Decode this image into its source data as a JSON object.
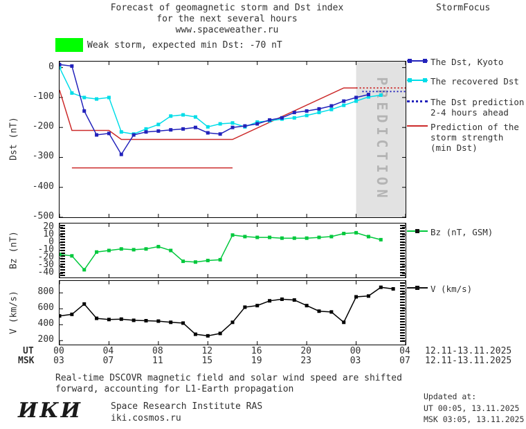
{
  "header": {
    "title_line1": "Forecast of geomagnetic storm and Dst index",
    "title_line2": "for the next several hours",
    "title_line3": "www.spaceweather.ru",
    "brand": "StormFocus"
  },
  "banner": {
    "text": "Weak storm, expected min Dst: -70 nT",
    "swatch_color": "#00ff00"
  },
  "colors": {
    "dst_blue": "#2222bb",
    "recovered_cyan": "#00dde8",
    "prediction_red": "#cc2a2a",
    "bz_green": "#00c83c",
    "v_black": "#000000",
    "band_bg": "#e2e2e2",
    "band_text": "#b4b4b4",
    "banner_green": "#00ff00"
  },
  "legend_main": {
    "items": [
      {
        "line1": "The Dst, Kyoto"
      },
      {
        "line1": "The recovered Dst"
      },
      {
        "line1": "The Dst prediction",
        "line2": "2-4 hours ahead"
      },
      {
        "line1": "Prediction of the",
        "line2": "storm strength",
        "line3": "(min Dst)"
      }
    ]
  },
  "legend_bz": {
    "label": "Bz (nT, GSM)"
  },
  "legend_v": {
    "label": "V (km/s)"
  },
  "xaxis": {
    "ut_label": "UT",
    "msk_label": "MSK",
    "ticks": [
      {
        "h": 0,
        "ut": "00",
        "msk": "03"
      },
      {
        "h": 4,
        "ut": "04",
        "msk": "07"
      },
      {
        "h": 8,
        "ut": "08",
        "msk": "11"
      },
      {
        "h": 12,
        "ut": "12",
        "msk": "15"
      },
      {
        "h": 16,
        "ut": "16",
        "msk": "19"
      },
      {
        "h": 20,
        "ut": "20",
        "msk": "23"
      },
      {
        "h": 24,
        "ut": "00",
        "msk": "03"
      },
      {
        "h": 28,
        "ut": "04",
        "msk": "07"
      }
    ],
    "ut_dates": "12.11-13.11.2025",
    "msk_dates": "12.11-13.11.2025"
  },
  "footer": {
    "line1": "Real-time DSCOVR magnetic field and solar wind speed are shifted",
    "line2": "forward, accounting for L1-Earth propagation"
  },
  "org": {
    "logo": "ИКИ",
    "name": "Space Research Institute RAS",
    "site": "iki.cosmos.ru"
  },
  "updated": {
    "label": "Updated at:",
    "ut": "UT  00:05, 13.11.2025",
    "msk": "MSK 03:05, 13.11.2025"
  },
  "chart_data": [
    {
      "id": "dst",
      "type": "line",
      "title": "Dst index forecast",
      "ylabel": "Dst (nT)",
      "xlabel": "UT hours 12.11-13.11.2025",
      "xlim": [
        0,
        28
      ],
      "ylim": [
        20,
        -500
      ],
      "yticks": [
        0,
        -100,
        -200,
        -300,
        -400,
        -500
      ],
      "band": {
        "x0": 24,
        "x1": 28,
        "label": "PREDICTION"
      },
      "series": [
        {
          "name": "Prediction of the storm strength (min Dst)",
          "color": "#cc2a2a",
          "x": [
            0,
            1,
            4,
            5,
            14,
            23,
            24
          ],
          "y": [
            -75,
            -210,
            -210,
            -240,
            -240,
            -68,
            -68
          ]
        },
        {
          "name": "Expected min Dst level",
          "color": "#cc2a2a",
          "x": [
            1,
            14
          ],
          "y": [
            -335,
            -335
          ]
        },
        {
          "name": "Storm strength prediction ahead",
          "color": "#cc2a2a",
          "dash": true,
          "x": [
            24,
            28
          ],
          "y": [
            -68,
            -68
          ]
        },
        {
          "name": "The recovered Dst",
          "color": "#00dde8",
          "marker": "square",
          "x": [
            0,
            1,
            2,
            3,
            4,
            5,
            6,
            7,
            8,
            9,
            10,
            11,
            12,
            13,
            14,
            15,
            16,
            17,
            18,
            19,
            20,
            21,
            22,
            23,
            24,
            25,
            26
          ],
          "y": [
            0,
            -85,
            -100,
            -105,
            -100,
            -215,
            -222,
            -205,
            -190,
            -162,
            -158,
            -165,
            -198,
            -188,
            -185,
            -198,
            -182,
            -178,
            -172,
            -168,
            -160,
            -150,
            -140,
            -126,
            -112,
            -98,
            -92
          ]
        },
        {
          "name": "The Dst, Kyoto",
          "color": "#2222bb",
          "marker": "square",
          "x": [
            0,
            1,
            2,
            3,
            4,
            5,
            6,
            7,
            8,
            9,
            10,
            11,
            12,
            13,
            14,
            15,
            16,
            17,
            18,
            19,
            20,
            21,
            22,
            23,
            24,
            25
          ],
          "y": [
            10,
            5,
            -145,
            -225,
            -220,
            -290,
            -225,
            -215,
            -212,
            -208,
            -205,
            -200,
            -218,
            -222,
            -200,
            -195,
            -188,
            -175,
            -168,
            -150,
            -145,
            -138,
            -128,
            -112,
            -100,
            -90
          ]
        },
        {
          "name": "The Dst prediction 2-4 hours ahead",
          "color": "#2222bb",
          "dash": true,
          "x": [
            24.5,
            28
          ],
          "y": [
            -80,
            -80
          ]
        }
      ]
    },
    {
      "id": "bz",
      "type": "line",
      "title": "IMF Bz",
      "ylabel": "Bz (nT)",
      "xlim": [
        0,
        28
      ],
      "ylim": [
        25,
        -45
      ],
      "yticks": [
        20,
        10,
        0,
        -10,
        -20,
        -30,
        -40
      ],
      "edge_ticks": [
        "left",
        "right"
      ],
      "series": [
        {
          "name": "Bz (nT, GSM)",
          "color": "#00c83c",
          "marker": "square",
          "x": [
            0,
            1,
            2,
            3,
            4,
            5,
            6,
            7,
            8,
            9,
            10,
            11,
            12,
            13,
            14,
            15,
            16,
            17,
            18,
            19,
            20,
            21,
            22,
            23,
            24,
            25,
            26
          ],
          "y": [
            -15,
            -17,
            -35,
            -12,
            -10,
            -8,
            -9,
            -8,
            -5,
            -10,
            -24,
            -25,
            -23,
            -22,
            10,
            8,
            7,
            7,
            6,
            6,
            6,
            7,
            8,
            12,
            13,
            8,
            4
          ]
        }
      ]
    },
    {
      "id": "v",
      "type": "line",
      "title": "Solar wind speed",
      "ylabel": "V (km/s)",
      "xlim": [
        0,
        28
      ],
      "ylim": [
        950,
        150
      ],
      "yticks": [
        800,
        600,
        400,
        200
      ],
      "edge_ticks": [
        "right"
      ],
      "series": [
        {
          "name": "V (km/s)",
          "color": "#000000",
          "marker": "square",
          "x": [
            0,
            1,
            2,
            3,
            4,
            5,
            6,
            7,
            8,
            9,
            10,
            11,
            12,
            13,
            14,
            15,
            16,
            17,
            18,
            19,
            20,
            21,
            22,
            23,
            24,
            25,
            26,
            27
          ],
          "y": [
            510,
            530,
            660,
            480,
            465,
            470,
            455,
            450,
            445,
            430,
            420,
            280,
            260,
            290,
            430,
            620,
            640,
            700,
            720,
            710,
            640,
            570,
            560,
            430,
            750,
            760,
            870,
            850
          ]
        }
      ]
    }
  ]
}
